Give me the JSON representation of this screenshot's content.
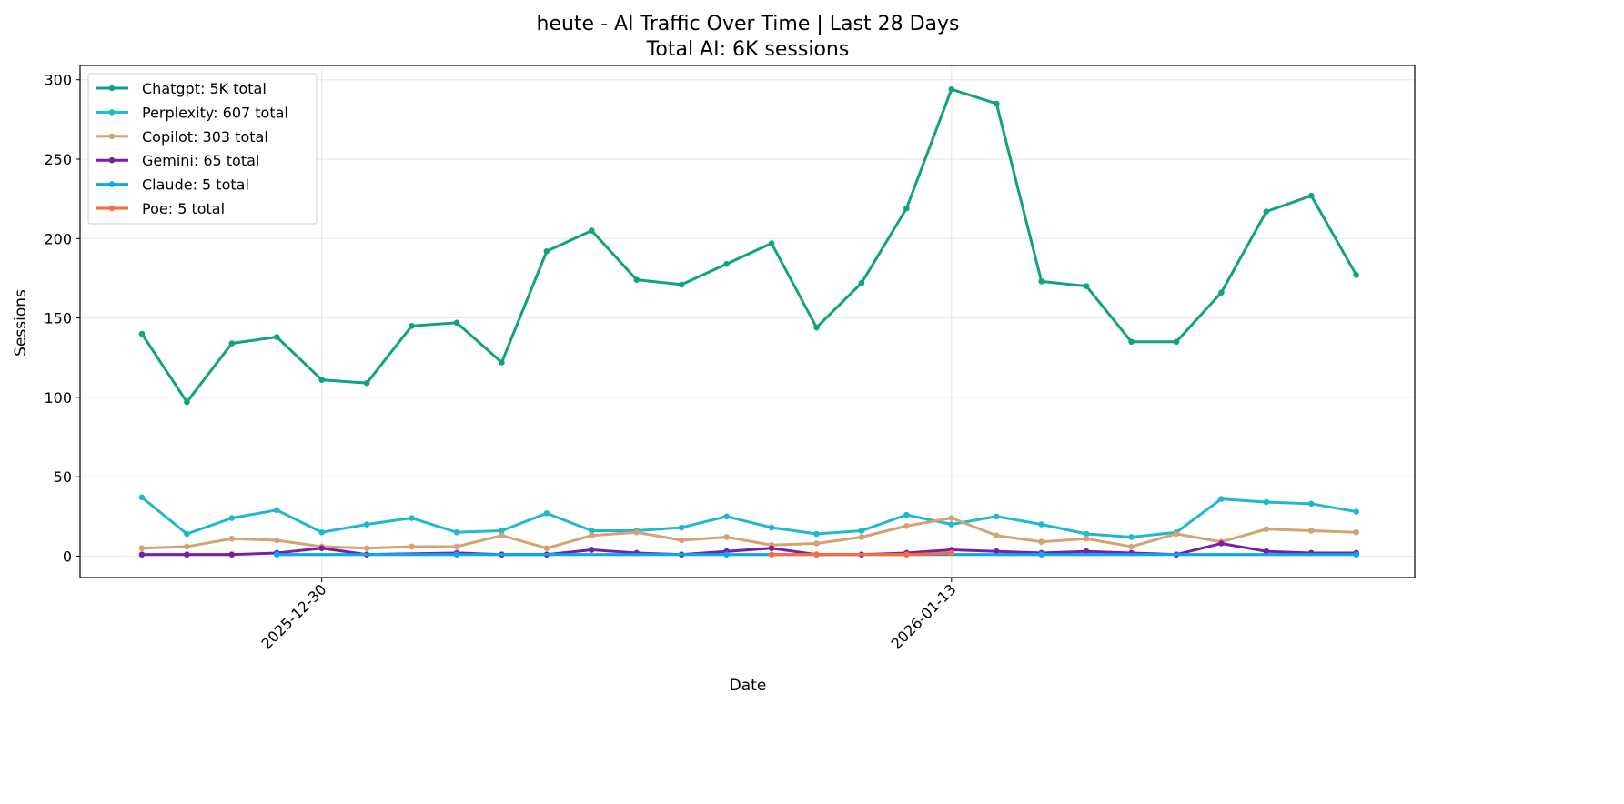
{
  "chart_data": {
    "type": "line",
    "title": "heute - AI Traffic Over Time | Last 28 Days",
    "subtitle": "Total AI: 6K sessions",
    "xlabel": "Date",
    "ylabel": "Sessions",
    "ylim": [
      -13.5,
      309
    ],
    "xlim_index": [
      -1.375,
      28.3
    ],
    "grid": true,
    "legend_placement": "top-left",
    "yticks": [
      0,
      50,
      100,
      150,
      200,
      250,
      300
    ],
    "xticks": [
      {
        "index": 4,
        "label": "2025-12-30"
      },
      {
        "index": 18,
        "label": "2026-01-13"
      }
    ],
    "x": [
      "2025-12-26",
      "2025-12-27",
      "2025-12-28",
      "2025-12-29",
      "2025-12-30",
      "2025-12-31",
      "2026-01-01",
      "2026-01-02",
      "2026-01-03",
      "2026-01-04",
      "2026-01-05",
      "2026-01-06",
      "2026-01-07",
      "2026-01-08",
      "2026-01-09",
      "2026-01-10",
      "2026-01-11",
      "2026-01-12",
      "2026-01-13",
      "2026-01-14",
      "2026-01-15",
      "2026-01-16",
      "2026-01-17",
      "2026-01-18",
      "2026-01-19",
      "2026-01-20",
      "2026-01-21",
      "2026-01-22"
    ],
    "series": [
      {
        "name": "Chatgpt",
        "legend": "Chatgpt: 5K total",
        "color": "#10a37f",
        "values": [
          140,
          97,
          134,
          138,
          111,
          109,
          145,
          147,
          122,
          192,
          205,
          174,
          171,
          184,
          197,
          144,
          172,
          219,
          294,
          285,
          173,
          170,
          135,
          135,
          166,
          217,
          227,
          177
        ]
      },
      {
        "name": "Perplexity",
        "legend": "Perplexity: 607 total",
        "color": "#20b8cd",
        "values": [
          37,
          14,
          24,
          29,
          15,
          20,
          24,
          15,
          16,
          27,
          16,
          16,
          18,
          25,
          18,
          14,
          16,
          26,
          20,
          25,
          20,
          14,
          12,
          15,
          36,
          34,
          33,
          28
        ]
      },
      {
        "name": "Copilot",
        "legend": "Copilot: 303 total",
        "color": "#d4a373",
        "values": [
          5,
          6,
          11,
          10,
          6,
          5,
          6,
          6,
          13,
          5,
          13,
          15,
          10,
          12,
          7,
          8,
          12,
          19,
          24,
          13,
          9,
          11,
          6,
          14,
          9,
          17,
          16,
          15
        ]
      },
      {
        "name": "Gemini",
        "legend": "Gemini: 65 total",
        "color": "#7b1fa2",
        "values": [
          1,
          1,
          1,
          2,
          5,
          1,
          null,
          2,
          1,
          1,
          4,
          2,
          1,
          3,
          5,
          1,
          1,
          2,
          4,
          3,
          2,
          3,
          2,
          1,
          8,
          3,
          2,
          2
        ]
      },
      {
        "name": "Claude",
        "legend": "Claude: 5 total",
        "color": "#03a9f4",
        "values": [
          null,
          null,
          null,
          1,
          null,
          null,
          null,
          1,
          null,
          null,
          null,
          null,
          null,
          1,
          null,
          null,
          null,
          null,
          null,
          null,
          1,
          null,
          null,
          null,
          null,
          null,
          null,
          1
        ]
      },
      {
        "name": "Poe",
        "legend": "Poe: 5 total",
        "color": "#ff6b35",
        "values": [
          null,
          null,
          null,
          null,
          null,
          null,
          null,
          null,
          null,
          null,
          null,
          null,
          null,
          null,
          1,
          1,
          null,
          1,
          2,
          null,
          null,
          null,
          null,
          null,
          null,
          null,
          null,
          null
        ]
      }
    ]
  }
}
